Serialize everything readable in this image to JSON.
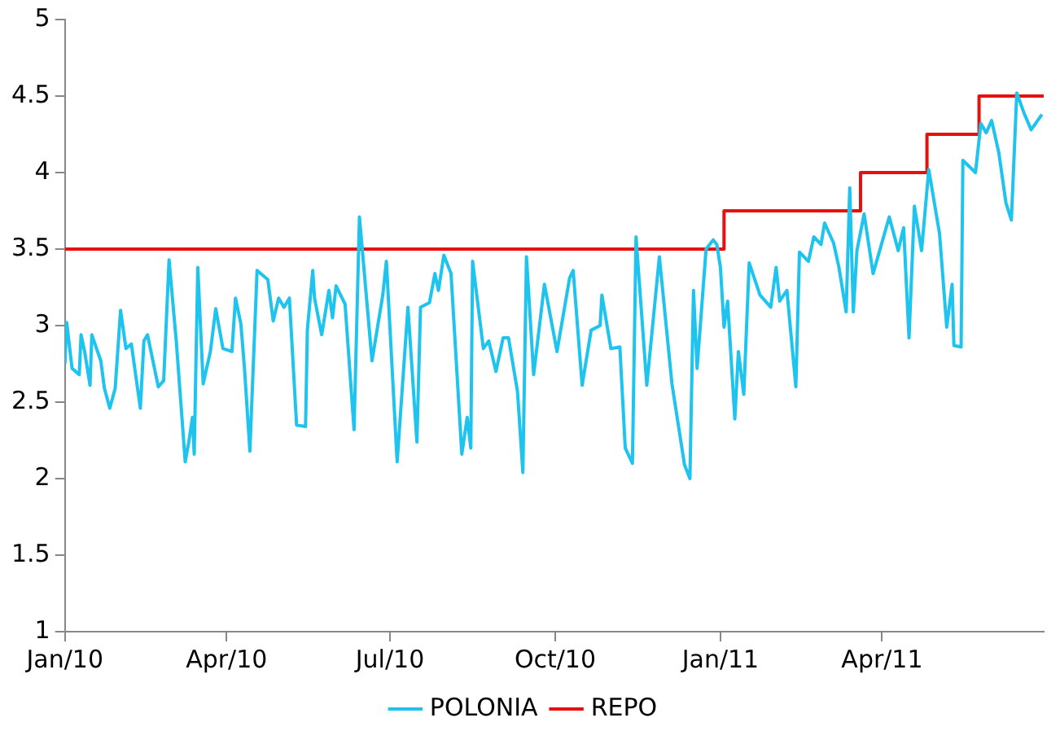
{
  "chart_data": {
    "type": "line",
    "xlim": [
      "2010-01-01",
      "2011-06-30"
    ],
    "xticks": [
      {
        "value": "2010-01-01",
        "label": "Jan/10"
      },
      {
        "value": "2010-04-01",
        "label": "Apr/10"
      },
      {
        "value": "2010-07-01",
        "label": "Jul/10"
      },
      {
        "value": "2010-10-01",
        "label": "Oct/10"
      },
      {
        "value": "2011-01-01",
        "label": "Jan/11"
      },
      {
        "value": "2011-04-01",
        "label": "Apr/11"
      }
    ],
    "ylim": [
      1,
      5
    ],
    "yticks": [
      1,
      1.5,
      2,
      2.5,
      3,
      3.5,
      4,
      4.5,
      5
    ],
    "grid": false,
    "legend": "bottom",
    "marker": "none",
    "series": [
      {
        "name": "POLONIA",
        "color": "#1ec4ee",
        "x": [
          "2010-01-01",
          "2010-01-02",
          "2010-01-05",
          "2010-01-09",
          "2010-01-10",
          "2010-01-12",
          "2010-01-15",
          "2010-01-16",
          "2010-01-21",
          "2010-01-23",
          "2010-01-26",
          "2010-01-29",
          "2010-02-01",
          "2010-02-04",
          "2010-02-07",
          "2010-02-12",
          "2010-02-14",
          "2010-02-16",
          "2010-02-22",
          "2010-02-25",
          "2010-02-28",
          "2010-03-04",
          "2010-03-09",
          "2010-03-11",
          "2010-03-13",
          "2010-03-14",
          "2010-03-16",
          "2010-03-19",
          "2010-03-23",
          "2010-03-26",
          "2010-03-30",
          "2010-04-04",
          "2010-04-06",
          "2010-04-09",
          "2010-04-11",
          "2010-04-14",
          "2010-04-18",
          "2010-04-24",
          "2010-04-27",
          "2010-04-30",
          "2010-05-03",
          "2010-05-06",
          "2010-05-10",
          "2010-05-15",
          "2010-05-16",
          "2010-05-19",
          "2010-05-20",
          "2010-05-24",
          "2010-05-28",
          "2010-05-30",
          "2010-06-01",
          "2010-06-06",
          "2010-06-11",
          "2010-06-14",
          "2010-06-21",
          "2010-06-27",
          "2010-06-29",
          "2010-07-05",
          "2010-07-11",
          "2010-07-16",
          "2010-07-18",
          "2010-07-23",
          "2010-07-26",
          "2010-07-28",
          "2010-07-31",
          "2010-08-04",
          "2010-08-10",
          "2010-08-13",
          "2010-08-15",
          "2010-08-16",
          "2010-08-22",
          "2010-08-25",
          "2010-08-29",
          "2010-09-02",
          "2010-09-05",
          "2010-09-10",
          "2010-09-13",
          "2010-09-15",
          "2010-09-19",
          "2010-09-25",
          "2010-10-02",
          "2010-10-09",
          "2010-10-11",
          "2010-10-16",
          "2010-10-21",
          "2010-10-26",
          "2010-10-27",
          "2010-11-01",
          "2010-11-06",
          "2010-11-09",
          "2010-11-13",
          "2010-11-15",
          "2010-11-21",
          "2010-11-28",
          "2010-12-05",
          "2010-12-12",
          "2010-12-15",
          "2010-12-17",
          "2010-12-19",
          "2010-12-24",
          "2010-12-28",
          "2010-12-30",
          "2011-01-01",
          "2011-01-03",
          "2011-01-05",
          "2011-01-09",
          "2011-01-11",
          "2011-01-14",
          "2011-01-17",
          "2011-01-23",
          "2011-01-29",
          "2011-02-01",
          "2011-02-03",
          "2011-02-07",
          "2011-02-12",
          "2011-02-14",
          "2011-02-19",
          "2011-02-22",
          "2011-02-26",
          "2011-02-28",
          "2011-03-05",
          "2011-03-08",
          "2011-03-12",
          "2011-03-14",
          "2011-03-16",
          "2011-03-18",
          "2011-03-22",
          "2011-03-27",
          "2011-04-05",
          "2011-04-10",
          "2011-04-13",
          "2011-04-16",
          "2011-04-19",
          "2011-04-23",
          "2011-04-27",
          "2011-05-03",
          "2011-05-07",
          "2011-05-10",
          "2011-05-11",
          "2011-05-15",
          "2011-05-16",
          "2011-05-23",
          "2011-05-26",
          "2011-05-29",
          "2011-06-01",
          "2011-06-05",
          "2011-06-09",
          "2011-06-12",
          "2011-06-15",
          "2011-06-19",
          "2011-06-23",
          "2011-06-29"
        ],
        "values": [
          2.75,
          3.02,
          2.72,
          2.68,
          2.94,
          2.83,
          2.61,
          2.94,
          2.77,
          2.59,
          2.46,
          2.59,
          3.1,
          2.85,
          2.88,
          2.46,
          2.9,
          2.94,
          2.6,
          2.64,
          3.43,
          2.9,
          2.11,
          2.24,
          2.4,
          2.16,
          3.38,
          2.62,
          2.83,
          3.11,
          2.85,
          2.83,
          3.18,
          3.01,
          2.72,
          2.18,
          3.36,
          3.3,
          3.03,
          3.18,
          3.12,
          3.18,
          2.35,
          2.34,
          2.97,
          3.36,
          3.18,
          2.94,
          3.23,
          3.05,
          3.26,
          3.14,
          2.32,
          3.71,
          2.77,
          3.2,
          3.42,
          2.11,
          3.12,
          2.24,
          3.12,
          3.15,
          3.34,
          3.23,
          3.46,
          3.34,
          2.16,
          2.4,
          2.2,
          3.42,
          2.85,
          2.9,
          2.7,
          2.92,
          2.92,
          2.57,
          2.04,
          3.45,
          2.68,
          3.27,
          2.83,
          3.31,
          3.36,
          2.61,
          2.97,
          3.0,
          3.2,
          2.85,
          2.86,
          2.2,
          2.1,
          3.58,
          2.61,
          3.45,
          2.62,
          2.09,
          2.0,
          3.23,
          2.72,
          3.5,
          3.56,
          3.53,
          3.38,
          2.99,
          3.16,
          2.39,
          2.83,
          2.55,
          3.41,
          3.2,
          3.12,
          3.38,
          3.16,
          3.23,
          2.6,
          3.48,
          3.42,
          3.58,
          3.53,
          3.67,
          3.54,
          3.38,
          3.09,
          3.9,
          3.09,
          3.49,
          3.73,
          3.34,
          3.71,
          3.49,
          3.64,
          2.92,
          3.78,
          3.49,
          4.02,
          3.6,
          2.99,
          3.27,
          2.87,
          2.86,
          4.08,
          4.0,
          4.32,
          4.26,
          4.34,
          4.13,
          3.8,
          3.69,
          4.52,
          4.39,
          4.28,
          4.38
        ]
      },
      {
        "name": "REPO",
        "type": "step",
        "color": "#e8100c",
        "x": [
          "2010-01-01",
          "2011-01-03",
          "2011-03-20",
          "2011-04-26",
          "2011-05-25",
          "2011-06-30"
        ],
        "values": [
          3.5,
          3.75,
          4.0,
          4.25,
          4.5,
          4.5
        ]
      }
    ]
  }
}
